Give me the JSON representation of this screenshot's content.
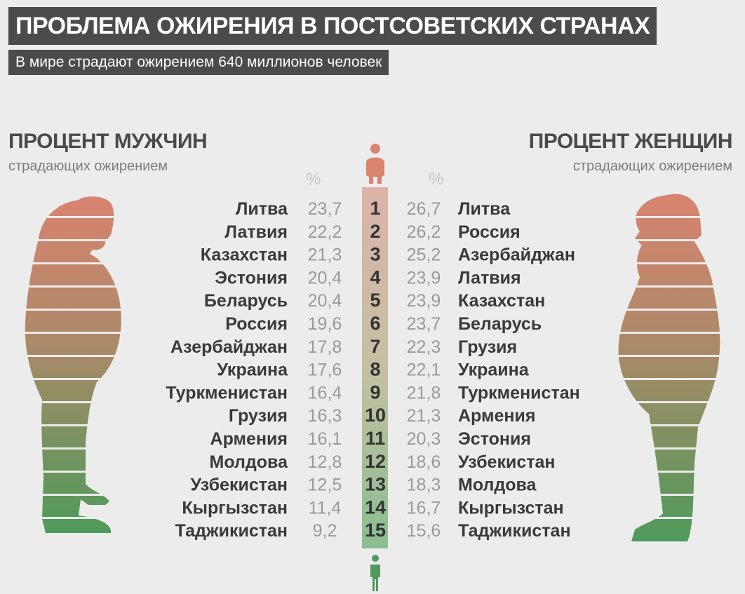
{
  "header": {
    "title": "ПРОБЛЕМА ОЖИРЕНИЯ В ПОСТСОВЕТСКИХ СТРАНАХ",
    "subtitle": "В мире страдают ожирением 640 миллионов человек"
  },
  "men": {
    "heading": "ПРОЦЕНТ МУЖЧИН",
    "subheading": "страдающих ожирением",
    "percent_sign": "%"
  },
  "women": {
    "heading": "ПРОЦЕНТ ЖЕНЩИН",
    "subheading": "страдающих ожирением",
    "percent_sign": "%"
  },
  "colors": {
    "top": "#d98370",
    "bottom": "#4e9a5a",
    "text": "#3a3a3a",
    "value": "#9a9a9a"
  },
  "chart_data": {
    "type": "table",
    "ranks": [
      "1",
      "2",
      "3",
      "4",
      "5",
      "6",
      "7",
      "8",
      "9",
      "10",
      "11",
      "12",
      "13",
      "14",
      "15"
    ],
    "series": [
      {
        "name": "ПРОЦЕНТ МУЖЧИН",
        "countries": [
          "Литва",
          "Латвия",
          "Казахстан",
          "Эстония",
          "Беларусь",
          "Россия",
          "Азербайджан",
          "Украина",
          "Туркменистан",
          "Грузия",
          "Армения",
          "Молдова",
          "Узбекистан",
          "Кыргызстан",
          "Таджикистан"
        ],
        "values": [
          "23,7",
          "22,2",
          "21,3",
          "20,4",
          "20,4",
          "19,6",
          "17,8",
          "17,6",
          "16,4",
          "16,3",
          "16,1",
          "12,8",
          "12,5",
          "11,4",
          "9,2"
        ]
      },
      {
        "name": "ПРОЦЕНТ ЖЕНЩИН",
        "countries": [
          "Литва",
          "Россия",
          "Азербайджан",
          "Латвия",
          "Казахстан",
          "Беларусь",
          "Грузия",
          "Украина",
          "Туркменистан",
          "Армения",
          "Эстония",
          "Узбекистан",
          "Молдова",
          "Кыргызстан",
          "Таджикистан"
        ],
        "values": [
          "26,7",
          "26,2",
          "25,2",
          "23,9",
          "23,9",
          "23,7",
          "22,3",
          "22,1",
          "21,8",
          "21,3",
          "20,3",
          "18,6",
          "18,3",
          "16,7",
          "15,6"
        ]
      }
    ]
  }
}
